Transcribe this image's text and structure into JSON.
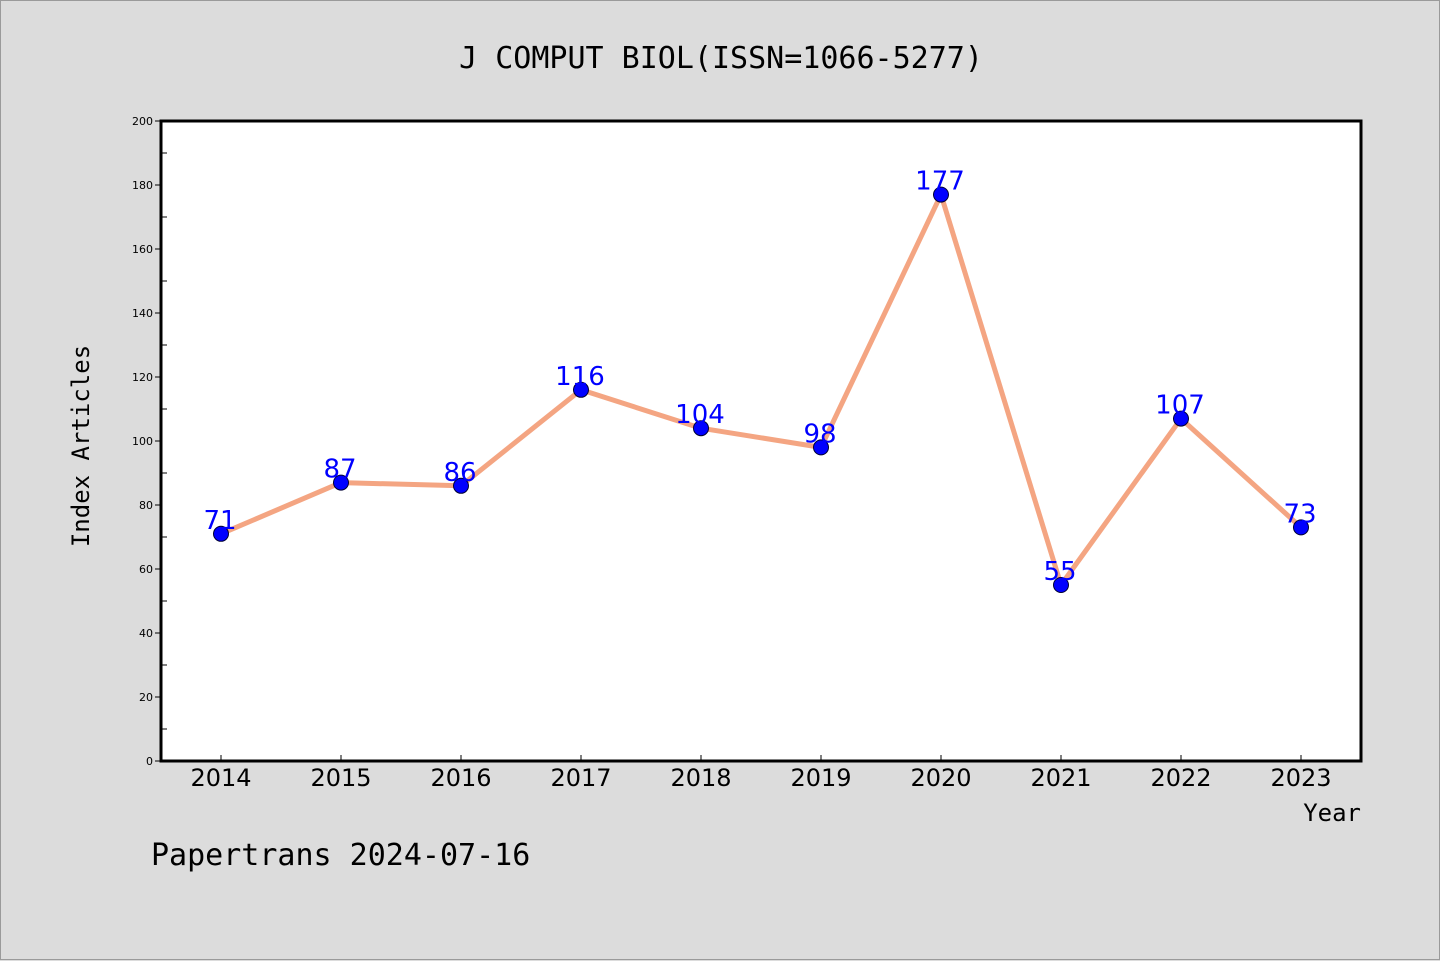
{
  "chart_data": {
    "type": "line",
    "title": "J COMPUT BIOL(ISSN=1066-5277)",
    "xlabel": "Year",
    "ylabel": "Index Articles",
    "categories": [
      "2014",
      "2015",
      "2016",
      "2017",
      "2018",
      "2019",
      "2020",
      "2021",
      "2022",
      "2023"
    ],
    "series": [
      {
        "values": [
          71,
          87,
          86,
          116,
          104,
          98,
          177,
          55,
          107,
          73
        ]
      }
    ],
    "ylim": [
      0,
      200
    ],
    "yticks": [
      0,
      20,
      40,
      60,
      80,
      100,
      120,
      140,
      160,
      180,
      200
    ],
    "grid": false,
    "data_labels": true,
    "colors": {
      "line": "#f4a582",
      "marker": "#0000ff",
      "data_label": "#0000ff",
      "background": "#dcdcdc",
      "plot_background": "#ffffff"
    }
  },
  "footer": {
    "text": "Papertrans 2024-07-16"
  }
}
